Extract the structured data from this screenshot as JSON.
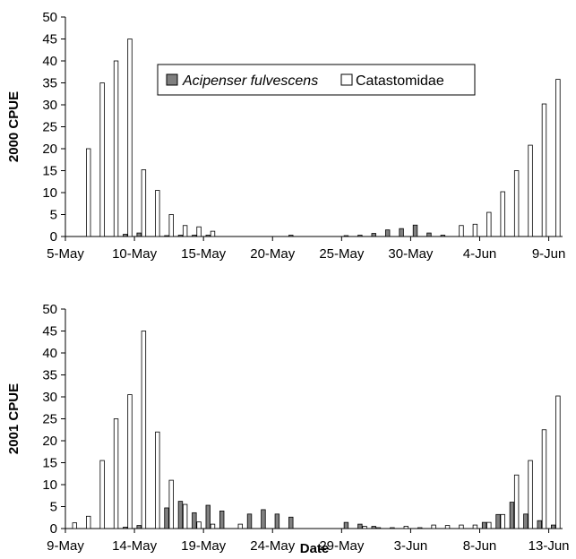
{
  "figure": {
    "xlabel": "Date",
    "colors": {
      "sturgeon_fill": "#808080",
      "sucker_fill": "#ffffff",
      "stroke": "#000000"
    }
  },
  "legend": {
    "series_1": "Acipenser fulvescens",
    "series_2": "Catastomidae"
  },
  "chart_data": [
    {
      "type": "bar",
      "ylabel": "2000 CPUE",
      "ylim": [
        0,
        50
      ],
      "yticks": [
        0,
        5,
        10,
        15,
        20,
        25,
        30,
        35,
        40,
        45,
        50
      ],
      "x_start": "5-May",
      "x_end": "9-Jun",
      "xtick_labels": [
        "5-May",
        "10-May",
        "15-May",
        "20-May",
        "25-May",
        "30-May",
        "4-Jun",
        "9-Jun"
      ],
      "categories": [
        "5-May",
        "6-May",
        "7-May",
        "8-May",
        "9-May",
        "10-May",
        "11-May",
        "12-May",
        "13-May",
        "14-May",
        "15-May",
        "16-May",
        "17-May",
        "18-May",
        "19-May",
        "20-May",
        "21-May",
        "22-May",
        "23-May",
        "24-May",
        "25-May",
        "26-May",
        "27-May",
        "28-May",
        "29-May",
        "30-May",
        "31-May",
        "1-Jun",
        "2-Jun",
        "3-Jun",
        "4-Jun",
        "5-Jun",
        "6-Jun",
        "7-Jun",
        "8-Jun",
        "9-Jun"
      ],
      "legend": "top-center",
      "series": [
        {
          "name": "Acipenser fulvescens",
          "values": [
            0,
            0,
            0,
            0,
            0.5,
            0.8,
            0,
            0.2,
            0.3,
            0.3,
            0.3,
            0,
            0,
            0,
            0,
            0,
            0.3,
            0,
            0,
            0,
            0.2,
            0.3,
            0.7,
            1.5,
            1.8,
            2.6,
            0.8,
            0.3,
            0,
            0,
            0,
            0,
            0,
            0,
            0,
            0
          ]
        },
        {
          "name": "Catastomidae",
          "values": [
            0,
            20,
            35,
            40,
            45,
            15.2,
            10.5,
            5,
            2.5,
            2.2,
            1.2,
            0,
            0,
            0,
            0,
            0,
            0,
            0,
            0,
            0,
            0,
            0,
            0,
            0,
            0,
            0,
            0,
            0,
            2.5,
            2.8,
            5.5,
            10.2,
            15,
            20.8,
            30.2,
            35.8
          ]
        }
      ]
    },
    {
      "type": "bar",
      "ylabel": "2001 CPUE",
      "ylim": [
        0,
        50
      ],
      "yticks": [
        0,
        5,
        10,
        15,
        20,
        25,
        30,
        35,
        40,
        45,
        50
      ],
      "x_start": "9-May",
      "x_end": "13-Jun",
      "xtick_labels": [
        "9-May",
        "14-May",
        "19-May",
        "24-May",
        "29-May",
        "3-Jun",
        "8-Jun",
        "13-Jun"
      ],
      "categories": [
        "9-May",
        "10-May",
        "11-May",
        "12-May",
        "13-May",
        "14-May",
        "15-May",
        "16-May",
        "17-May",
        "18-May",
        "19-May",
        "20-May",
        "21-May",
        "22-May",
        "23-May",
        "24-May",
        "25-May",
        "26-May",
        "27-May",
        "28-May",
        "29-May",
        "30-May",
        "31-May",
        "1-Jun",
        "2-Jun",
        "3-Jun",
        "4-Jun",
        "5-Jun",
        "6-Jun",
        "7-Jun",
        "8-Jun",
        "9-Jun",
        "10-Jun",
        "11-Jun",
        "12-Jun",
        "13-Jun"
      ],
      "legend": "none",
      "series": [
        {
          "name": "Acipenser fulvescens",
          "values": [
            0,
            0,
            0,
            0,
            0.3,
            0.7,
            0,
            4.7,
            6.2,
            3.6,
            5.3,
            4,
            0,
            3.3,
            4.3,
            3.3,
            2.6,
            0,
            0,
            0,
            1.4,
            1,
            0.5,
            0,
            0,
            0,
            0,
            0,
            0,
            0,
            1.4,
            3.2,
            6,
            3.3,
            1.8,
            0.8
          ]
        },
        {
          "name": "Catastomidae",
          "values": [
            1.3,
            2.8,
            15.5,
            25,
            30.5,
            45,
            22,
            11,
            5.5,
            1.5,
            1,
            0,
            1,
            0,
            0,
            0,
            0,
            0,
            0,
            0,
            0,
            0.5,
            0.2,
            0.2,
            0.5,
            0.2,
            0.8,
            0.7,
            0.8,
            0.8,
            1.4,
            3.2,
            12.2,
            15.5,
            22.5,
            30.2
          ]
        }
      ]
    }
  ]
}
